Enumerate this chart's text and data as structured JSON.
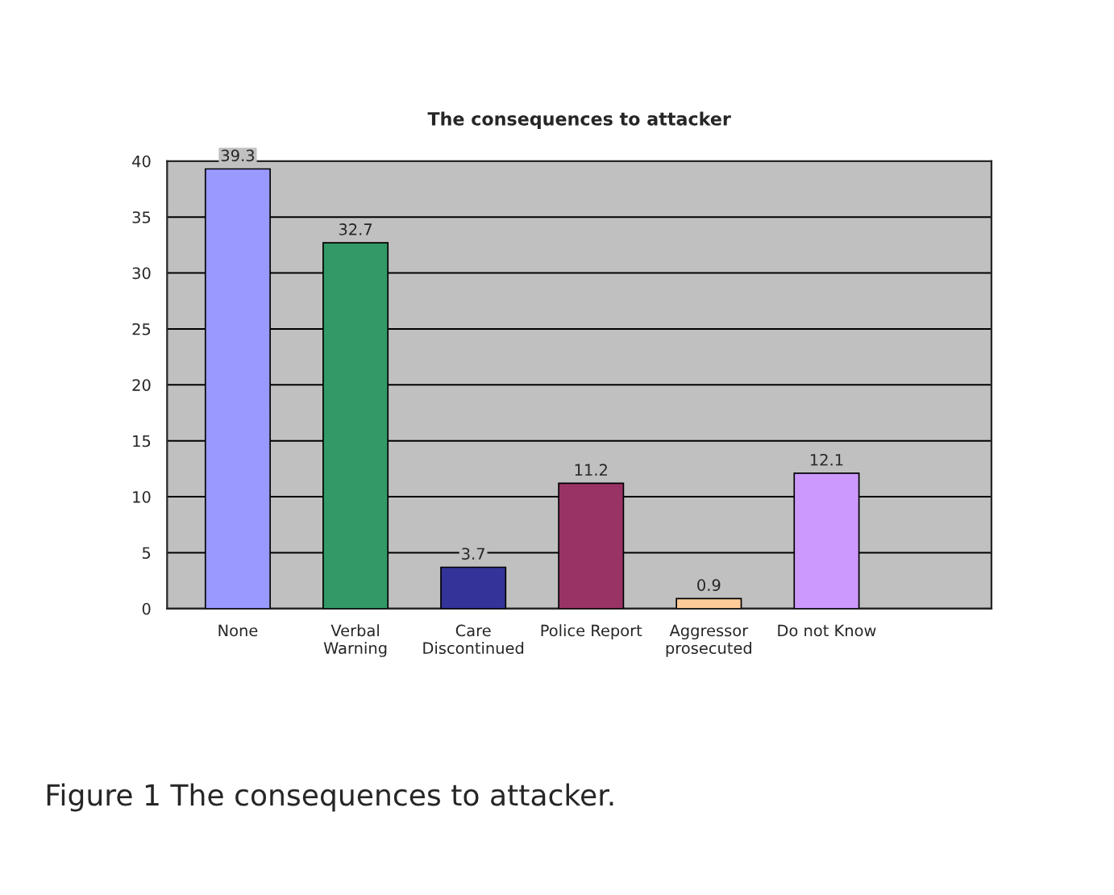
{
  "chart_data": {
    "type": "bar",
    "title": "The consequences to attacker",
    "categories": [
      "None",
      "Verbal\nWarning",
      "Care\nDiscontinued",
      "Police Report",
      "Aggressor\nprosecuted",
      "Do not Know"
    ],
    "values": [
      39.3,
      32.7,
      3.7,
      11.2,
      0.9,
      12.1
    ],
    "colors": [
      "#9999ff",
      "#339966",
      "#333399",
      "#993366",
      "#ffcc99",
      "#cc99ff"
    ],
    "ylim": [
      0,
      40
    ],
    "yticks": [
      0,
      5,
      10,
      15,
      20,
      25,
      30,
      35,
      40
    ],
    "grid": "y",
    "data_labels": true,
    "annotations": [
      "Figure 1 The consequences to attacker."
    ]
  }
}
